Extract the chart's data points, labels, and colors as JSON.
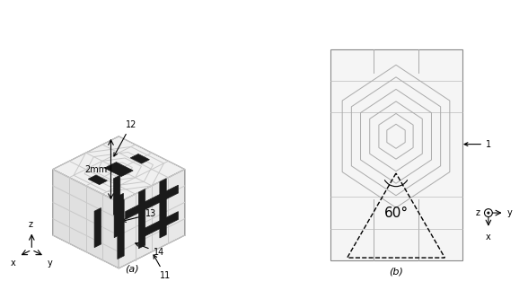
{
  "background_color": "#ffffff",
  "fig_width": 5.88,
  "fig_height": 3.33,
  "panel_a_label": "(a)",
  "panel_b_label": "(b)",
  "label_2mm": "2mm",
  "angle_label": "60°",
  "annotation_1": "1",
  "annotation_11": "11",
  "annotation_12": "12",
  "annotation_13": "13",
  "annotation_14": "14",
  "axis_color": "#000000",
  "light_gray": "#c8c8c8",
  "dark_color": "#1a1a1a"
}
